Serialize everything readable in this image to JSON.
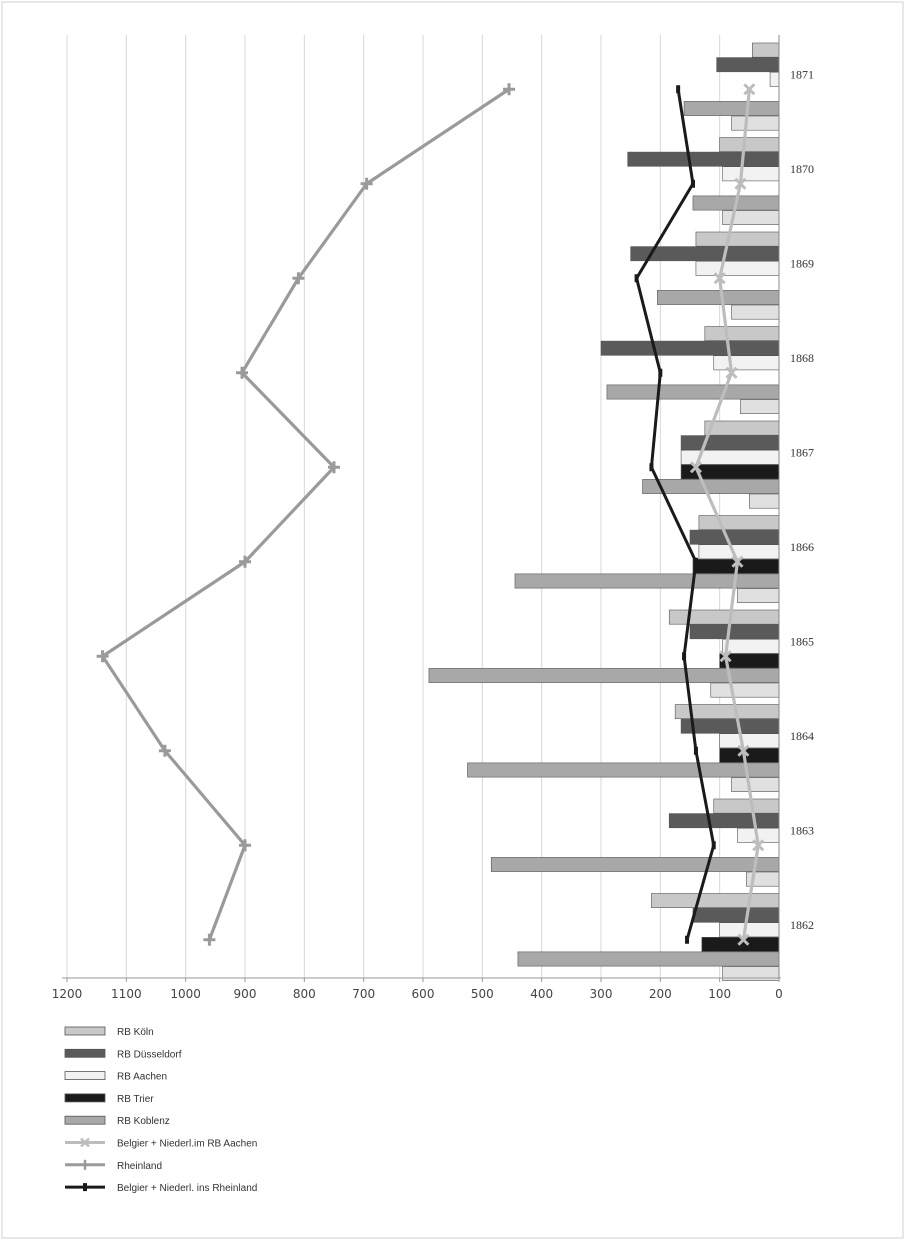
{
  "chart_data": {
    "type": "bar",
    "orientation": "horizontal",
    "x_axis": "reversed",
    "xlim": [
      0,
      1200
    ],
    "x_ticks": [
      "1200",
      "1100",
      "1000",
      "900",
      "800",
      "700",
      "600",
      "500",
      "400",
      "300",
      "200",
      "100",
      "0"
    ],
    "categories": [
      "1871",
      "1870",
      "1869",
      "1868",
      "1867",
      "1866",
      "1865",
      "1864",
      "1863",
      "1862"
    ],
    "grid": true,
    "legend_position": "bottom-left",
    "bar_series": [
      {
        "name": "RB Köln",
        "color": "#c8c8c8",
        "values": [
          45,
          100,
          140,
          125,
          125,
          135,
          185,
          175,
          110,
          215
        ]
      },
      {
        "name": "RB Düsseldorf",
        "color": "#5a5a5a",
        "values": [
          105,
          255,
          250,
          300,
          165,
          150,
          150,
          165,
          185,
          145
        ]
      },
      {
        "name": "RB Aachen",
        "color": "#f2f2f2",
        "values": [
          15,
          95,
          140,
          110,
          165,
          135,
          95,
          100,
          70,
          100
        ]
      },
      {
        "name": "RB Trier",
        "color": "#1a1a1a",
        "values": [
          0,
          0,
          0,
          0,
          165,
          145,
          100,
          100,
          0,
          130
        ]
      },
      {
        "name": "RB Koblenz",
        "color": "#a8a8a8",
        "values": [
          160,
          145,
          205,
          290,
          230,
          445,
          590,
          525,
          485,
          440
        ]
      },
      {
        "name": "",
        "color": "#e0e0e0",
        "values": [
          80,
          95,
          80,
          65,
          50,
          70,
          115,
          80,
          55,
          95
        ]
      }
    ],
    "line_series": [
      {
        "name": "Belgier + Niederl.im RB Aachen",
        "color": "#bdbdbd",
        "marker": "x",
        "values": [
          50,
          65,
          100,
          80,
          140,
          70,
          90,
          60,
          35,
          60
        ]
      },
      {
        "name": "Rheinland",
        "color": "#9a9a9a",
        "marker": "+",
        "values": [
          455,
          695,
          810,
          905,
          750,
          900,
          1140,
          1035,
          900,
          960
        ]
      },
      {
        "name": "Belgier + Niederl. ins Rheinland",
        "color": "#1a1a1a",
        "marker": "-",
        "values": [
          170,
          145,
          240,
          200,
          215,
          140,
          160,
          140,
          110,
          155
        ]
      }
    ]
  }
}
